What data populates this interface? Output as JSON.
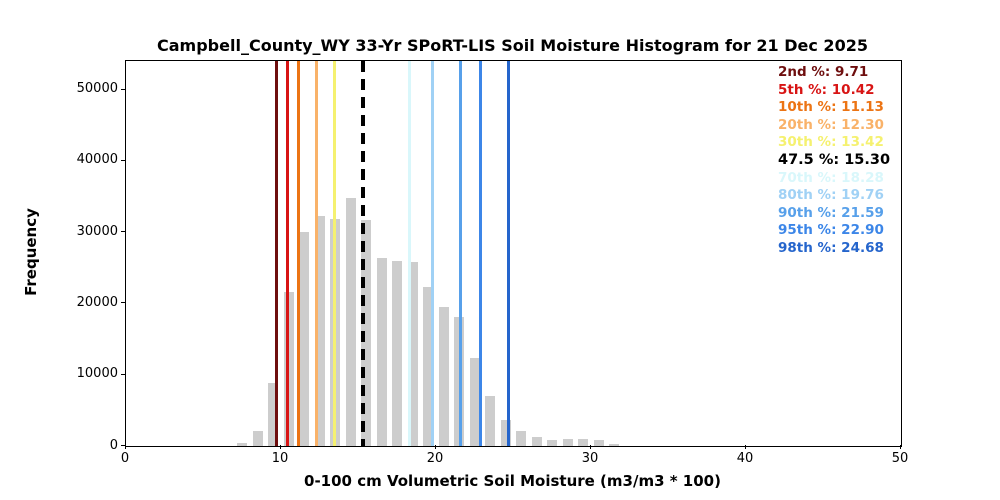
{
  "chart_data": {
    "type": "bar",
    "title": "Campbell_County_WY 33-Yr SPoRT-LIS Soil Moisture Histogram for 21 Dec 2025",
    "xlabel": "0-100 cm Volumetric Soil Moisture (m3/m3 * 100)",
    "ylabel": "Frequency",
    "xlim": [
      0,
      50
    ],
    "ylim": [
      0,
      54000
    ],
    "xticks": [
      0,
      10,
      20,
      30,
      40,
      50
    ],
    "yticks": [
      0,
      10000,
      20000,
      30000,
      40000,
      50000
    ],
    "grid": false,
    "legend_position": "upper-right",
    "bar_color": "#cdcdcd",
    "bin_width": 1,
    "bar_rwidth": 0.66,
    "bin_left_edges": [
      7,
      8,
      9,
      10,
      11,
      12,
      13,
      14,
      15,
      16,
      17,
      18,
      19,
      20,
      21,
      22,
      23,
      24,
      25,
      26,
      27,
      28,
      29,
      30,
      31
    ],
    "counts": [
      400,
      2100,
      8800,
      21600,
      30000,
      32200,
      31900,
      34800,
      31700,
      26400,
      25900,
      25800,
      22300,
      19500,
      18100,
      12300,
      7000,
      3600,
      2100,
      1200,
      780,
      1000,
      1000,
      880,
      230
    ],
    "percentiles": [
      {
        "label": "2nd %",
        "value": 9.71,
        "display": "9.71",
        "color": "#6e0e0e",
        "line_style": "solid",
        "emphasis": false
      },
      {
        "label": "5th %",
        "value": 10.42,
        "display": "10.42",
        "color": "#d81414",
        "line_style": "solid",
        "emphasis": false
      },
      {
        "label": "10th %",
        "value": 11.13,
        "display": "11.13",
        "color": "#ec7414",
        "line_style": "solid",
        "emphasis": false
      },
      {
        "label": "20th %",
        "value": 12.3,
        "display": "12.30",
        "color": "#f9b269",
        "line_style": "solid",
        "emphasis": false
      },
      {
        "label": "30th %",
        "value": 13.42,
        "display": "13.42",
        "color": "#f5f170",
        "line_style": "solid",
        "emphasis": false
      },
      {
        "label": "47.5 %",
        "value": 15.3,
        "display": "15.30",
        "color": "#000000",
        "line_style": "dashed",
        "emphasis": true
      },
      {
        "label": "70th %",
        "value": 18.28,
        "display": "18.28",
        "color": "#d9f7fb",
        "line_style": "solid",
        "emphasis": false
      },
      {
        "label": "80th %",
        "value": 19.76,
        "display": "19.76",
        "color": "#a0d1f5",
        "line_style": "solid",
        "emphasis": false
      },
      {
        "label": "90th %",
        "value": 21.59,
        "display": "21.59",
        "color": "#57a0ea",
        "line_style": "solid",
        "emphasis": false
      },
      {
        "label": "95th %",
        "value": 22.9,
        "display": "22.90",
        "color": "#3c86e8",
        "line_style": "solid",
        "emphasis": false
      },
      {
        "label": "98th %",
        "value": 24.68,
        "display": "24.68",
        "color": "#2565cc",
        "line_style": "solid",
        "emphasis": false
      }
    ]
  }
}
